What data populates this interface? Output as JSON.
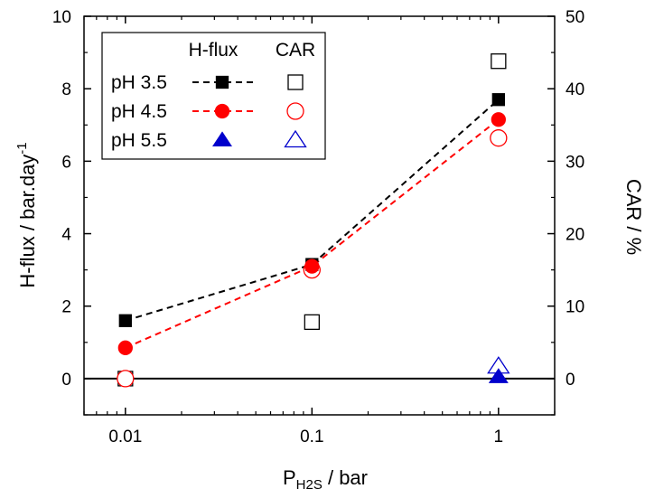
{
  "chart_data": {
    "type": "scatter",
    "x_scale": "log",
    "xlim": [
      0.006,
      2
    ],
    "ylim_left": [
      -1,
      10
    ],
    "ylim_right": [
      -5,
      50
    ],
    "xlabel_main": "P",
    "xlabel_sub": "H2S",
    "xlabel_rest": " / bar",
    "ylabel_left_main": "H-flux / bar.day",
    "ylabel_left_sup": "-1",
    "ylabel_right": "CAR / %",
    "x_ticks": [
      0.01,
      0.1,
      1
    ],
    "x_tick_labels": [
      "0.01",
      "0.1",
      "1"
    ],
    "y_left_ticks": [
      0,
      2,
      4,
      6,
      8,
      10
    ],
    "y_left_tick_labels": [
      "0",
      "2",
      "4",
      "6",
      "8",
      "10"
    ],
    "y_right_ticks": [
      0,
      10,
      20,
      30,
      40,
      50
    ],
    "y_right_tick_labels": [
      "0",
      "10",
      "20",
      "30",
      "40",
      "50"
    ],
    "zero_line": 0,
    "legend": {
      "position": "top-left",
      "header_hflux": "H-flux",
      "header_car": "CAR",
      "labels": [
        "pH 3.5",
        "pH 4.5",
        "pH 5.5"
      ]
    },
    "series": [
      {
        "name": "pH 3.5",
        "color": "#000000",
        "marker": "square",
        "hflux": {
          "x": [
            0.01,
            0.1,
            1
          ],
          "y": [
            1.6,
            3.15,
            7.7
          ],
          "line": true
        },
        "car": {
          "x": [
            0.01,
            0.1,
            1
          ],
          "y": [
            0,
            7.8,
            43.8
          ]
        }
      },
      {
        "name": "pH 4.5",
        "color": "#ff0000",
        "marker": "circle",
        "hflux": {
          "x": [
            0.01,
            0.1,
            1
          ],
          "y": [
            0.85,
            3.1,
            7.15
          ],
          "line": true
        },
        "car": {
          "x": [
            0.01,
            0.1,
            1
          ],
          "y": [
            0,
            15,
            33.2
          ]
        }
      },
      {
        "name": "pH 5.5",
        "color": "#0000cc",
        "marker": "triangle",
        "hflux": {
          "x": [
            1
          ],
          "y": [
            0.05
          ],
          "line": false
        },
        "car": {
          "x": [
            1
          ],
          "y": [
            1.7
          ]
        }
      }
    ]
  }
}
